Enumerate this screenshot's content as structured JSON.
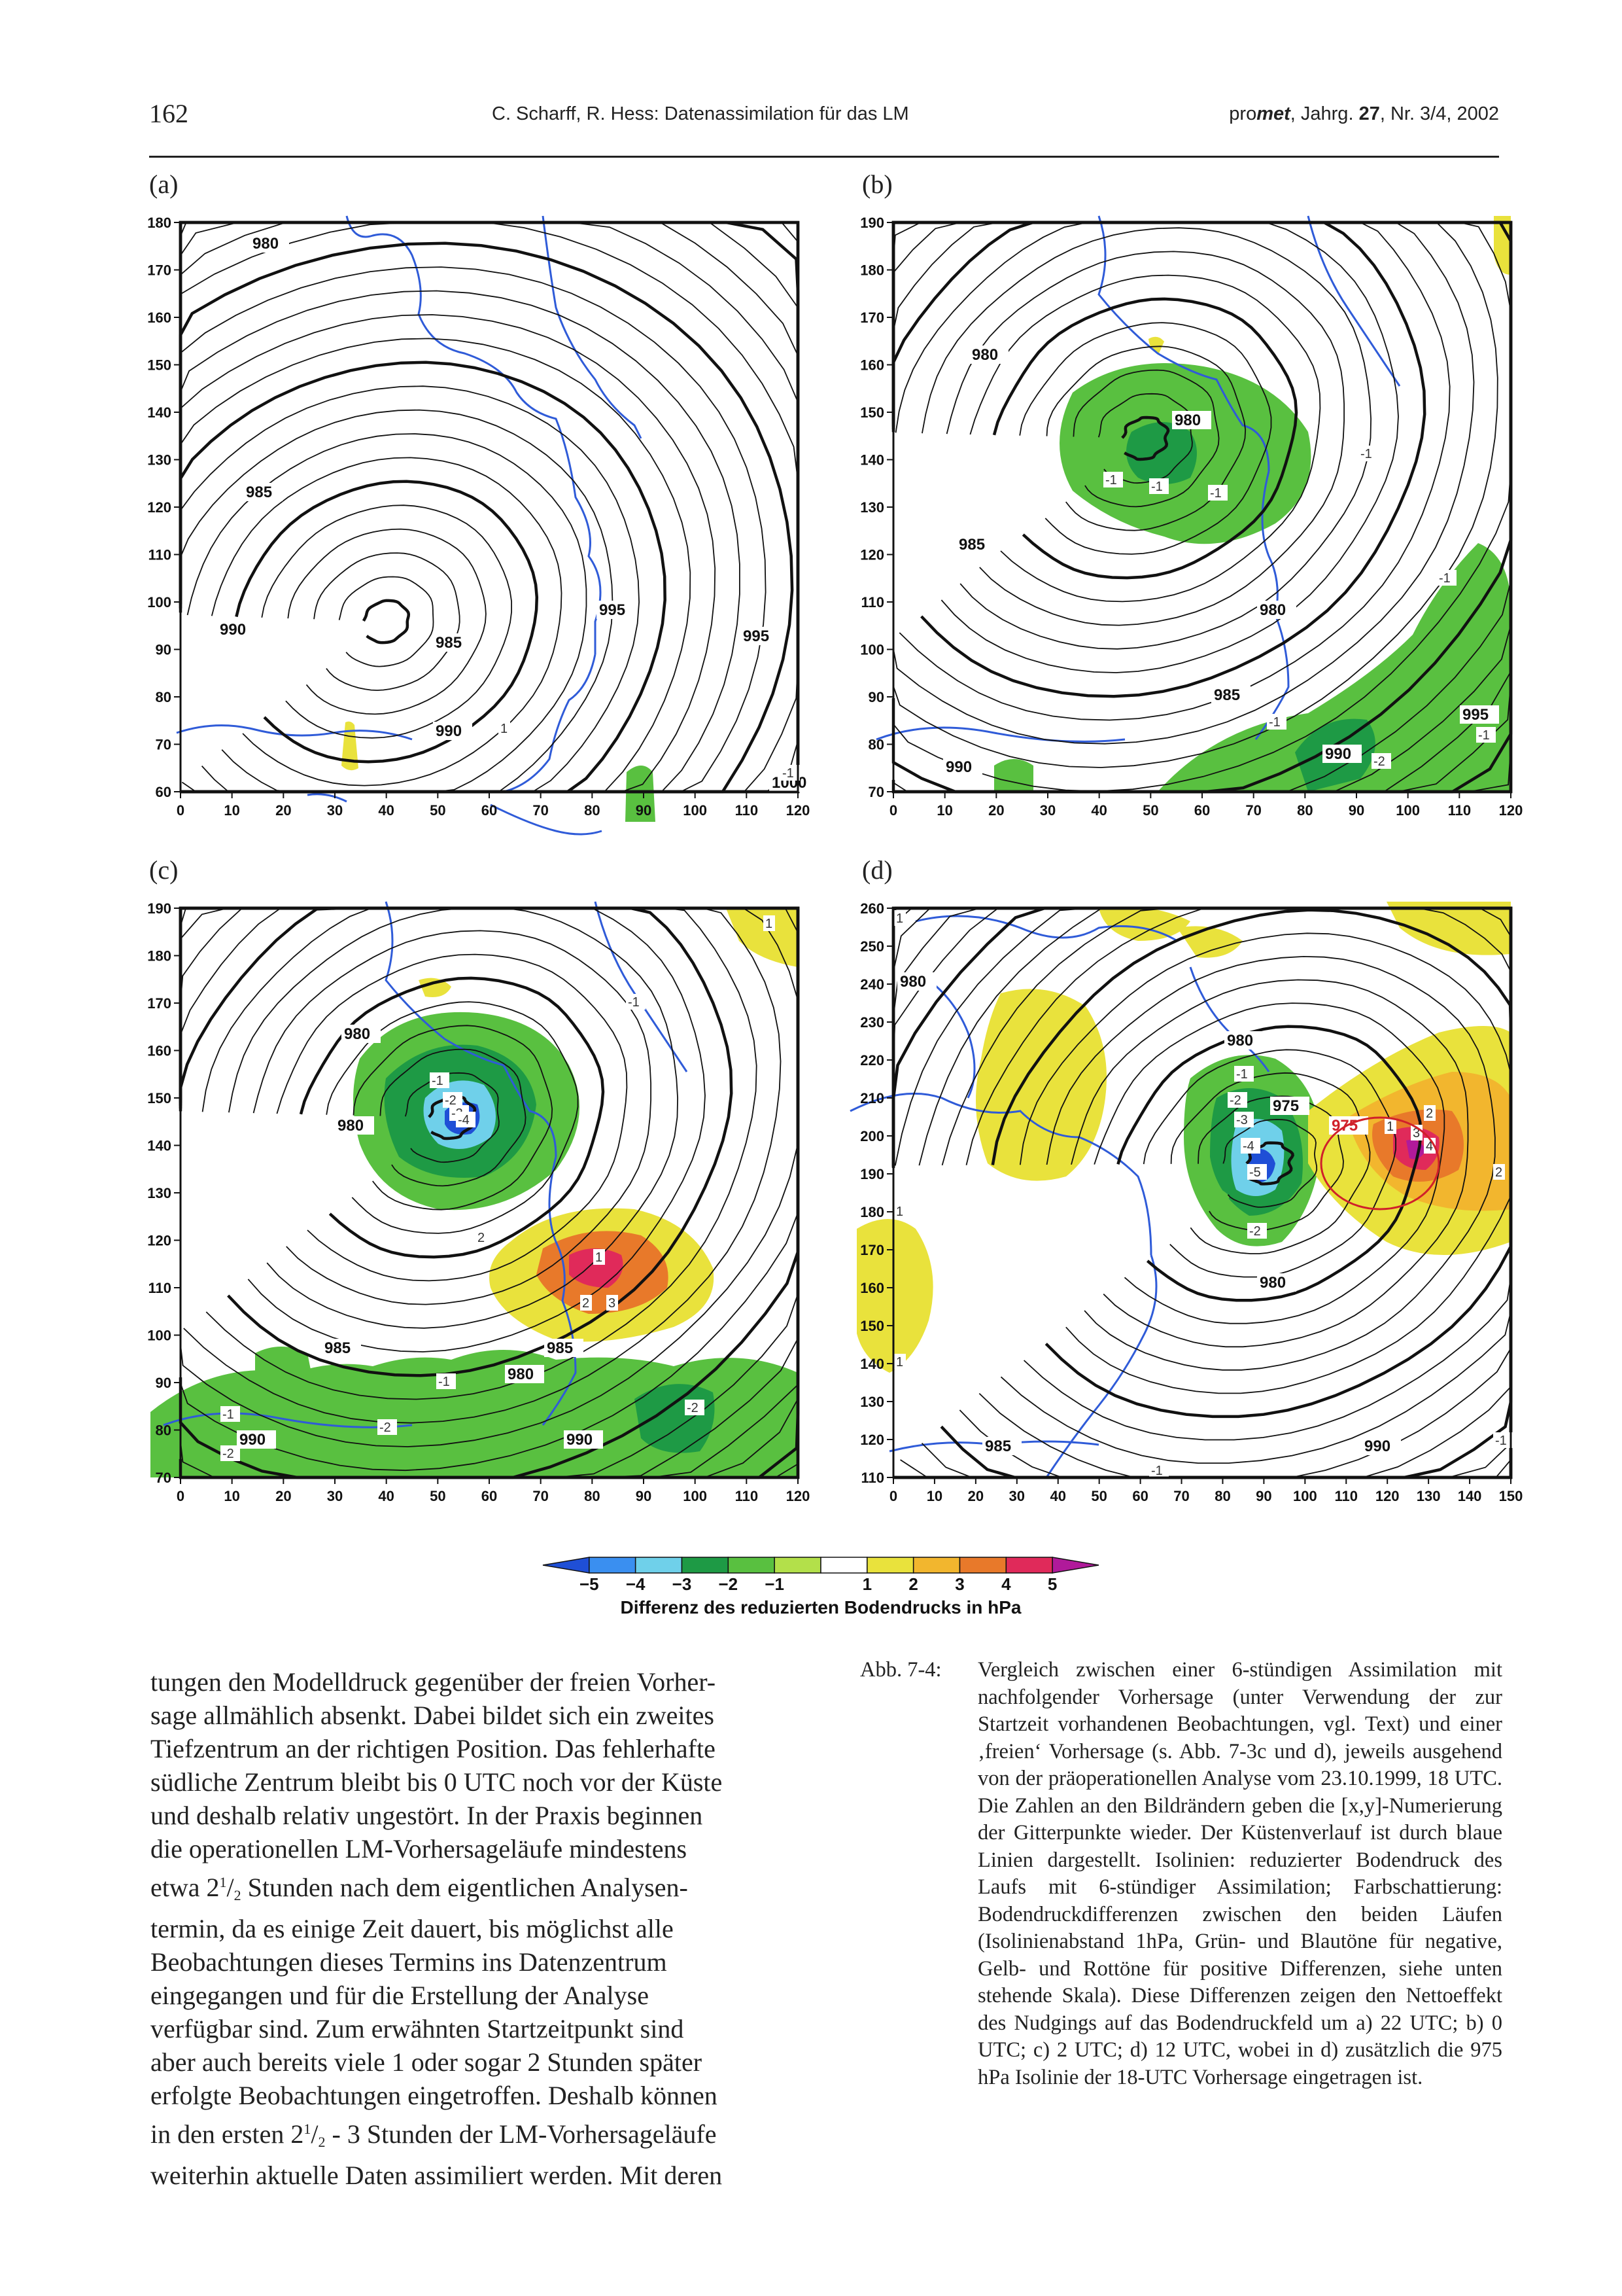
{
  "header": {
    "page_number": "162",
    "title": "C. Scharff, R. Hess: Datenassimilation für das LM",
    "journal_pre": "pro",
    "journal_em": "met",
    "journal_mid": ", Jahrg. ",
    "journal_vol": "27",
    "journal_post": ", Nr. 3/4, 2002"
  },
  "panels": [
    {
      "label": "(a)",
      "x_ticks": [
        "0",
        "10",
        "20",
        "30",
        "40",
        "50",
        "60",
        "70",
        "80",
        "90",
        "100",
        "110",
        "120"
      ],
      "y_ticks": [
        "60",
        "70",
        "80",
        "90",
        "100",
        "110",
        "120",
        "130",
        "140",
        "150",
        "160",
        "170",
        "180"
      ],
      "isolines": [
        "980",
        "985",
        "990",
        "985",
        "990",
        "995",
        "995",
        "1000"
      ],
      "shading": [
        "1",
        "-1"
      ]
    },
    {
      "label": "(b)",
      "x_ticks": [
        "0",
        "10",
        "20",
        "30",
        "40",
        "50",
        "60",
        "70",
        "80",
        "90",
        "100",
        "110",
        "120"
      ],
      "y_ticks": [
        "70",
        "80",
        "90",
        "100",
        "110",
        "120",
        "130",
        "140",
        "150",
        "160",
        "170",
        "180",
        "190"
      ],
      "isolines": [
        "980",
        "980",
        "980",
        "985",
        "985",
        "990",
        "990",
        "995"
      ],
      "shading": [
        "-1",
        "-1",
        "-1",
        "-1",
        "-1",
        "-2",
        "-1",
        "-1"
      ]
    },
    {
      "label": "(c)",
      "x_ticks": [
        "0",
        "10",
        "20",
        "30",
        "40",
        "50",
        "60",
        "70",
        "80",
        "90",
        "100",
        "110",
        "120"
      ],
      "y_ticks": [
        "70",
        "80",
        "90",
        "100",
        "110",
        "120",
        "130",
        "140",
        "150",
        "160",
        "170",
        "180",
        "190"
      ],
      "isolines": [
        "980",
        "980",
        "980",
        "985",
        "985",
        "990",
        "990"
      ],
      "shading": [
        "-1",
        "-2",
        "-3",
        "-4",
        "1",
        "3",
        "2",
        "2",
        "-1",
        "-2",
        "-2",
        "-1",
        "-2",
        "-1",
        "1"
      ]
    },
    {
      "label": "(d)",
      "x_ticks": [
        "0",
        "10",
        "20",
        "30",
        "40",
        "50",
        "60",
        "70",
        "80",
        "90",
        "100",
        "110",
        "120",
        "130",
        "140",
        "150"
      ],
      "y_ticks": [
        "110",
        "120",
        "130",
        "140",
        "150",
        "160",
        "170",
        "180",
        "190",
        "200",
        "210",
        "220",
        "230",
        "240",
        "250",
        "260"
      ],
      "isolines": [
        "980",
        "980",
        "975",
        "980",
        "985",
        "990",
        "975"
      ],
      "shading": [
        "-1",
        "-2",
        "-3",
        "-4",
        "-5",
        "-2",
        "1",
        "2",
        "3",
        "4",
        "2",
        "1",
        "1",
        "1",
        "-1",
        "-1"
      ]
    }
  ],
  "colorbar": {
    "ticks": [
      "−5",
      "−4",
      "−3",
      "−2",
      "−1",
      "1",
      "2",
      "3",
      "4",
      "5"
    ],
    "colors": [
      "#1f4fd6",
      "#3a8ff0",
      "#6fd0ea",
      "#1e9a45",
      "#59c040",
      "#b3e04a",
      "#ffffff",
      "#e9e23c",
      "#f2b62e",
      "#e8792a",
      "#e02a5a",
      "#b01a9a"
    ],
    "label": "Differenz des reduzierten Bodendrucks in hPa"
  },
  "body_text": {
    "l1": "tungen den Modelldruck gegenüber der freien Vorher-",
    "l2": "sage allmählich absenkt. Dabei bildet sich ein zweites",
    "l3": "Tiefzentrum an der richtigen Position. Das fehlerhafte",
    "l4": "südliche Zentrum bleibt bis 0 UTC noch vor der Küste",
    "l5": "und deshalb relativ ungestört. In der Praxis beginnen",
    "l6": "die operationellen LM-Vorhersageläufe mindestens",
    "l7a": "etwa 2",
    "l7b": " Stunden nach dem eigentlichen Analysen-",
    "l8": "termin, da es einige Zeit dauert, bis möglichst alle",
    "l9": "Beobachtungen dieses Termins ins Datenzentrum",
    "l10": "eingegangen und für die Erstellung der Analyse",
    "l11": "verfügbar sind. Zum erwähnten Startzeitpunkt sind",
    "l12": "aber auch bereits viele 1 oder sogar 2 Stunden später",
    "l13": "erfolgte Beobachtungen eingetroffen. Deshalb können",
    "l14a": "in den ersten 2",
    "l14b": " - 3 Stunden der LM-Vorhersageläufe",
    "l15": "weiterhin aktuelle Daten assimiliert werden. Mit deren",
    "frac_num": "1",
    "frac_den": "2"
  },
  "caption": {
    "label": "Abb. 7-4:",
    "text": "Vergleich zwischen einer 6-stündigen Assimilation mit nachfolgender Vorhersage (unter Verwendung der zur Startzeit vorhandenen Beobachtungen, vgl. Text) und einer ‚freien‘ Vorhersage (s. Abb. 7-3c und d), jeweils ausgehend von der präoperationellen Analyse vom 23.10.1999, 18 UTC. Die Zahlen an den Bildrändern geben die [x,y]-Numerierung der Gitterpunkte wieder. Der Küstenverlauf ist durch blaue Linien dargestellt. Isolinien: reduzierter Bodendruck des Laufs mit 6-stündiger Assimilation; Farbschattierung: Bodendruckdifferenzen zwischen den beiden Läufen (Isolinienabstand 1hPa, Grün- und Blautöne für negative, Gelb- und Rottöne für positive Differenzen, siehe unten stehende Skala). Diese Differenzen zeigen den Nettoeffekt des Nudgings auf das Bodendruckfeld um a) 22 UTC; b) 0 UTC; c) 2 UTC; d) 12 UTC, wobei in d) zusätzlich die 975 hPa Isolinie der 18-UTC Vorhersage eingetragen ist."
  }
}
